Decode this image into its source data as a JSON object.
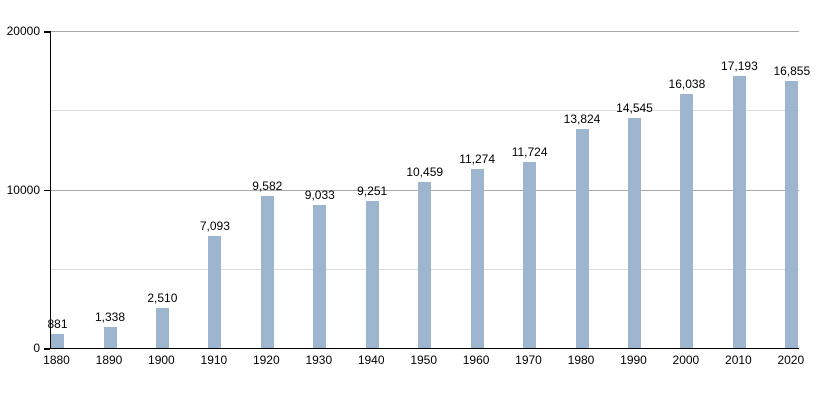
{
  "chart_data": {
    "type": "bar",
    "title": "",
    "xlabel": "",
    "ylabel": "",
    "categories": [
      "1880",
      "1890",
      "1900",
      "1910",
      "1920",
      "1930",
      "1940",
      "1950",
      "1960",
      "1970",
      "1980",
      "1990",
      "2000",
      "2010",
      "2020"
    ],
    "values": [
      881,
      1338,
      2510,
      7093,
      9582,
      9033,
      9251,
      10459,
      11274,
      11724,
      13824,
      14545,
      16038,
      17193,
      16855
    ],
    "value_labels": [
      "881",
      "1,338",
      "2,510",
      "7,093",
      "9,582",
      "9,033",
      "9,251",
      "10,459",
      "11,274",
      "11,724",
      "13,824",
      "14,545",
      "16,038",
      "17,193",
      "16,855"
    ],
    "ylim": [
      0,
      20000
    ],
    "y_ticks": [
      {
        "value": 0,
        "label": "0"
      },
      {
        "value": 10000,
        "label": "10000"
      },
      {
        "value": 20000,
        "label": "20000"
      }
    ],
    "gridlines": [
      {
        "value": 5000,
        "style": "minor"
      },
      {
        "value": 10000,
        "style": "major"
      },
      {
        "value": 15000,
        "style": "minor"
      },
      {
        "value": 20000,
        "style": "major"
      }
    ],
    "grid": "horizontal",
    "legend_position": "none",
    "colors": {
      "bar": "#9db5ce",
      "axis": "#000000",
      "major_gridline": "#a9a9a9",
      "minor_gridline": "#dcdcdc",
      "label_text": "#000000",
      "background": "#ffffff"
    }
  }
}
